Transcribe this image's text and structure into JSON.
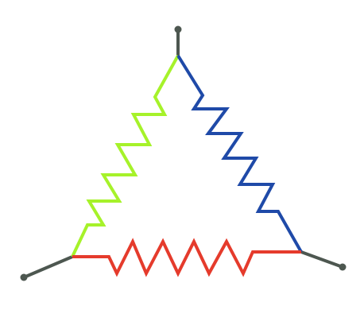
{
  "diagram": {
    "type": "delta-resistor-network",
    "colors": {
      "terminal_wire": "#4d5750",
      "terminal_dot": "#4d5750",
      "resistor_left": "#a6f22a",
      "resistor_right": "#1f4aa8",
      "resistor_bottom": "#e53b2c"
    },
    "terminals": [
      "top",
      "bottom-left",
      "bottom-right"
    ],
    "resistors": [
      "left",
      "right",
      "bottom"
    ]
  }
}
